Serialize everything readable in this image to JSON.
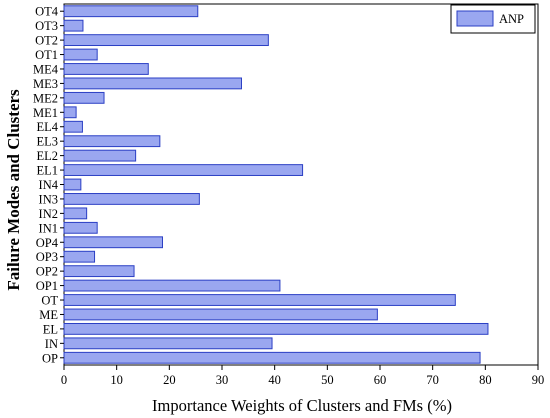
{
  "colors": {
    "bar_fill": "#9aa7f0",
    "bar_stroke": "#2b3fc4",
    "axis": "#000000"
  },
  "chart_data": {
    "type": "bar",
    "orientation": "horizontal",
    "categories": [
      "OP",
      "IN",
      "EL",
      "ME",
      "OT",
      "OP1",
      "OP2",
      "OP3",
      "OP4",
      "IN1",
      "IN2",
      "IN3",
      "IN4",
      "EL1",
      "EL2",
      "EL3",
      "EL4",
      "ME1",
      "ME2",
      "ME3",
      "ME4",
      "OT1",
      "OT2",
      "OT3",
      "OT4"
    ],
    "series": [
      {
        "name": "ANP",
        "values": [
          79,
          39.5,
          80.5,
          59.5,
          74.3,
          41,
          13.3,
          5.8,
          18.7,
          6.3,
          4.3,
          25.7,
          3.2,
          45.3,
          13.6,
          18.2,
          3.5,
          2.3,
          7.6,
          33.7,
          16,
          6.3,
          38.8,
          3.6,
          25.4
        ]
      }
    ],
    "xlabel": "Importance Weights of Clusters and FMs (%)",
    "ylabel": "Failure Modes and Clusters",
    "xlim": [
      0,
      90
    ],
    "xticks": [
      "0",
      "10",
      "20",
      "30",
      "40",
      "50",
      "60",
      "70",
      "80",
      "90"
    ],
    "grid": false,
    "legend_position": "top-right"
  }
}
